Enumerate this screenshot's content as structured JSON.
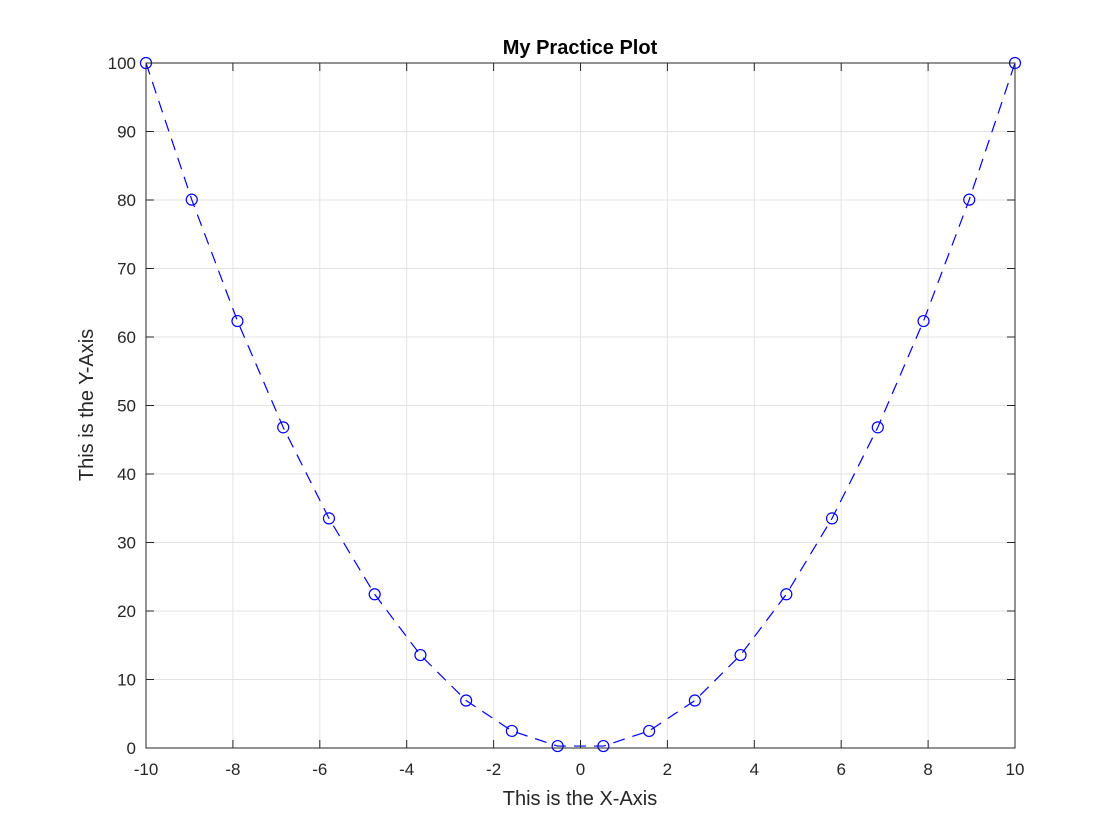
{
  "chart_data": {
    "type": "line",
    "title": "My Practice Plot",
    "xlabel": "This is the X-Axis",
    "ylabel": "This is the Y-Axis",
    "xlim": [
      -10,
      10
    ],
    "ylim": [
      0,
      100
    ],
    "xticks": [
      -10,
      -8,
      -6,
      -4,
      -2,
      0,
      2,
      4,
      6,
      8,
      10
    ],
    "yticks": [
      0,
      10,
      20,
      30,
      40,
      50,
      60,
      70,
      80,
      90,
      100
    ],
    "xtick_labels": [
      "-10",
      "-8",
      "-6",
      "-4",
      "-2",
      "0",
      "2",
      "4",
      "6",
      "8",
      "10"
    ],
    "ytick_labels": [
      "0",
      "10",
      "20",
      "30",
      "40",
      "50",
      "60",
      "70",
      "80",
      "90",
      "100"
    ],
    "grid": true,
    "series": [
      {
        "color": "#0000ff",
        "line_style": "dashed",
        "marker": "circle",
        "x": [
          -10,
          -8.947,
          -7.895,
          -6.842,
          -5.789,
          -4.737,
          -3.684,
          -2.632,
          -1.579,
          -0.526,
          0.526,
          1.579,
          2.632,
          3.684,
          4.737,
          5.789,
          6.842,
          7.895,
          8.947,
          10
        ],
        "y": [
          100,
          80.05,
          62.33,
          46.81,
          33.52,
          22.44,
          13.57,
          6.93,
          2.49,
          0.28,
          0.28,
          2.49,
          6.93,
          13.57,
          22.44,
          33.52,
          46.81,
          62.33,
          80.05,
          100
        ]
      }
    ]
  }
}
